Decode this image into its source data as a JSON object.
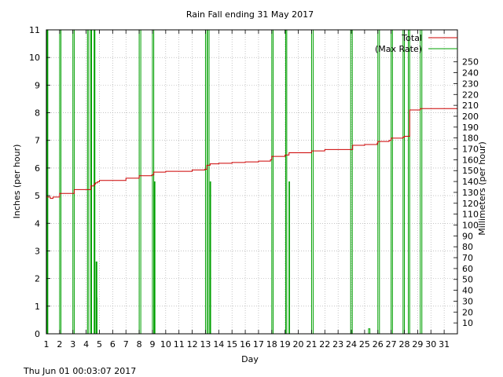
{
  "chart_data": {
    "type": "line",
    "title": "Rain Fall ending 31 May 2017",
    "xlabel": "Day",
    "ylabel": "Inches (per hour)",
    "y2label": "Millimeters (per hour)",
    "footer": "Thu Jun 01 00:03:07 2017",
    "xlim": [
      1,
      32
    ],
    "ylim": [
      0,
      11
    ],
    "y2lim": [
      0,
      279.4
    ],
    "x_ticks": [
      1,
      2,
      3,
      4,
      5,
      6,
      7,
      8,
      9,
      10,
      11,
      12,
      13,
      14,
      15,
      16,
      17,
      18,
      19,
      20,
      21,
      22,
      23,
      24,
      25,
      26,
      27,
      28,
      29,
      30,
      31
    ],
    "y_ticks": [
      0,
      1,
      2,
      3,
      4,
      5,
      6,
      7,
      8,
      9,
      10,
      11
    ],
    "y2_ticks": [
      10,
      20,
      30,
      40,
      50,
      60,
      70,
      80,
      90,
      100,
      110,
      120,
      130,
      140,
      150,
      160,
      170,
      180,
      190,
      200,
      210,
      220,
      230,
      240,
      250
    ],
    "grid": true,
    "legend_position": "top-right",
    "colors": {
      "total": "#cc0000",
      "max_rate": "#00a000"
    },
    "series": [
      {
        "name": "Total",
        "x": [
          1.0,
          1.3,
          1.5,
          2.0,
          2.9,
          3.1,
          4.1,
          4.35,
          4.6,
          4.7,
          4.85,
          5.0,
          6.9,
          7.0,
          7.9,
          8.0,
          8.95,
          9.1,
          10.0,
          12.0,
          12.95,
          13.1,
          13.35,
          14.0,
          15.0,
          16.0,
          17.0,
          17.9,
          18.0,
          18.95,
          19.0,
          19.3,
          20.9,
          21.0,
          21.9,
          22.0,
          23.9,
          24.1,
          25.0,
          25.95,
          26.0,
          26.85,
          27.0,
          27.9,
          28.0,
          28.4,
          29.2,
          29.4,
          32.0
        ],
        "y": [
          4.95,
          4.9,
          4.95,
          5.08,
          5.08,
          5.22,
          5.22,
          5.35,
          5.42,
          5.46,
          5.5,
          5.55,
          5.55,
          5.63,
          5.63,
          5.72,
          5.75,
          5.85,
          5.88,
          5.93,
          5.95,
          6.1,
          6.15,
          6.17,
          6.2,
          6.22,
          6.25,
          6.3,
          6.42,
          6.42,
          6.47,
          6.55,
          6.55,
          6.62,
          6.62,
          6.67,
          6.67,
          6.82,
          6.85,
          6.9,
          6.96,
          7.0,
          7.08,
          7.12,
          7.15,
          8.1,
          8.15,
          8.15,
          8.22
        ]
      },
      {
        "name": "(Max Rate)",
        "spikes": [
          {
            "x": 1.05,
            "y": 11,
            "w": 0.06
          },
          {
            "x": 2.0,
            "y": 11,
            "w": 0.1
          },
          {
            "x": 3.0,
            "y": 11,
            "w": 0.1
          },
          {
            "x": 4.1,
            "y": 11,
            "w": 0.1
          },
          {
            "x": 4.35,
            "y": 11,
            "w": 0.06
          },
          {
            "x": 4.6,
            "y": 11,
            "w": 0.06
          },
          {
            "x": 4.75,
            "y": 2.6,
            "w": 0.06
          },
          {
            "x": 4.78,
            "y": 1.3,
            "w": 0.04
          },
          {
            "x": 8.0,
            "y": 11,
            "w": 0.12
          },
          {
            "x": 9.0,
            "y": 11,
            "w": 0.1
          },
          {
            "x": 9.15,
            "y": 5.5,
            "w": 0.04
          },
          {
            "x": 13.0,
            "y": 11,
            "w": 0.12
          },
          {
            "x": 13.15,
            "y": 11,
            "w": 0.12
          },
          {
            "x": 13.35,
            "y": 5.5,
            "w": 0.04
          },
          {
            "x": 18.0,
            "y": 11,
            "w": 0.1
          },
          {
            "x": 19.05,
            "y": 11,
            "w": 0.08
          },
          {
            "x": 19.3,
            "y": 5.5,
            "w": 0.04
          },
          {
            "x": 21.0,
            "y": 11,
            "w": 0.12
          },
          {
            "x": 23.95,
            "y": 11,
            "w": 0.12
          },
          {
            "x": 25.3,
            "y": 0.18,
            "w": 0.1
          },
          {
            "x": 26.0,
            "y": 11,
            "w": 0.12
          },
          {
            "x": 27.0,
            "y": 11,
            "w": 0.1
          },
          {
            "x": 27.9,
            "y": 11,
            "w": 0.1
          },
          {
            "x": 28.3,
            "y": 11,
            "w": 0.1
          },
          {
            "x": 29.2,
            "y": 11,
            "w": 0.12
          }
        ]
      }
    ]
  }
}
